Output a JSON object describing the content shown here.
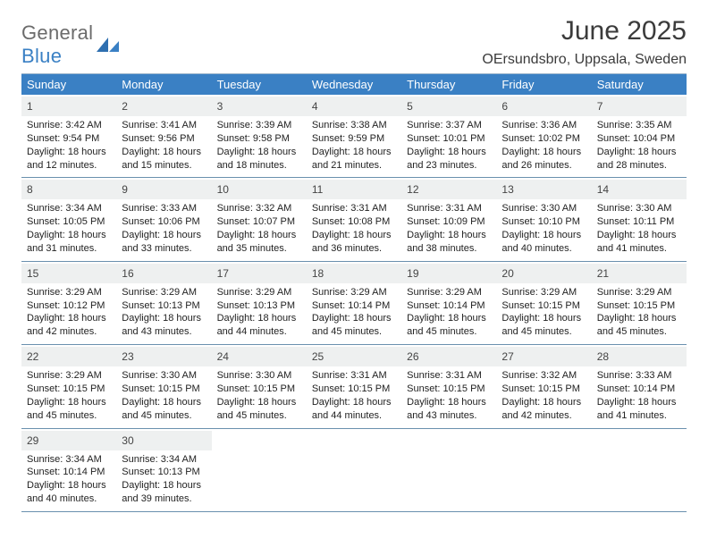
{
  "brand": {
    "word1": "General",
    "word2": "Blue"
  },
  "title": "June 2025",
  "location": "OErsundsbro, Uppsala, Sweden",
  "colors": {
    "accent": "#3a80c4",
    "gray_text": "#6b6b6b",
    "band": "#eef0f0",
    "week_border": "#6a90ae",
    "top_border": "#9fb7cc"
  },
  "days_of_week": [
    "Sunday",
    "Monday",
    "Tuesday",
    "Wednesday",
    "Thursday",
    "Friday",
    "Saturday"
  ],
  "weeks": [
    [
      {
        "n": "1",
        "sr": "Sunrise: 3:42 AM",
        "ss": "Sunset: 9:54 PM",
        "d1": "Daylight: 18 hours",
        "d2": "and 12 minutes."
      },
      {
        "n": "2",
        "sr": "Sunrise: 3:41 AM",
        "ss": "Sunset: 9:56 PM",
        "d1": "Daylight: 18 hours",
        "d2": "and 15 minutes."
      },
      {
        "n": "3",
        "sr": "Sunrise: 3:39 AM",
        "ss": "Sunset: 9:58 PM",
        "d1": "Daylight: 18 hours",
        "d2": "and 18 minutes."
      },
      {
        "n": "4",
        "sr": "Sunrise: 3:38 AM",
        "ss": "Sunset: 9:59 PM",
        "d1": "Daylight: 18 hours",
        "d2": "and 21 minutes."
      },
      {
        "n": "5",
        "sr": "Sunrise: 3:37 AM",
        "ss": "Sunset: 10:01 PM",
        "d1": "Daylight: 18 hours",
        "d2": "and 23 minutes."
      },
      {
        "n": "6",
        "sr": "Sunrise: 3:36 AM",
        "ss": "Sunset: 10:02 PM",
        "d1": "Daylight: 18 hours",
        "d2": "and 26 minutes."
      },
      {
        "n": "7",
        "sr": "Sunrise: 3:35 AM",
        "ss": "Sunset: 10:04 PM",
        "d1": "Daylight: 18 hours",
        "d2": "and 28 minutes."
      }
    ],
    [
      {
        "n": "8",
        "sr": "Sunrise: 3:34 AM",
        "ss": "Sunset: 10:05 PM",
        "d1": "Daylight: 18 hours",
        "d2": "and 31 minutes."
      },
      {
        "n": "9",
        "sr": "Sunrise: 3:33 AM",
        "ss": "Sunset: 10:06 PM",
        "d1": "Daylight: 18 hours",
        "d2": "and 33 minutes."
      },
      {
        "n": "10",
        "sr": "Sunrise: 3:32 AM",
        "ss": "Sunset: 10:07 PM",
        "d1": "Daylight: 18 hours",
        "d2": "and 35 minutes."
      },
      {
        "n": "11",
        "sr": "Sunrise: 3:31 AM",
        "ss": "Sunset: 10:08 PM",
        "d1": "Daylight: 18 hours",
        "d2": "and 36 minutes."
      },
      {
        "n": "12",
        "sr": "Sunrise: 3:31 AM",
        "ss": "Sunset: 10:09 PM",
        "d1": "Daylight: 18 hours",
        "d2": "and 38 minutes."
      },
      {
        "n": "13",
        "sr": "Sunrise: 3:30 AM",
        "ss": "Sunset: 10:10 PM",
        "d1": "Daylight: 18 hours",
        "d2": "and 40 minutes."
      },
      {
        "n": "14",
        "sr": "Sunrise: 3:30 AM",
        "ss": "Sunset: 10:11 PM",
        "d1": "Daylight: 18 hours",
        "d2": "and 41 minutes."
      }
    ],
    [
      {
        "n": "15",
        "sr": "Sunrise: 3:29 AM",
        "ss": "Sunset: 10:12 PM",
        "d1": "Daylight: 18 hours",
        "d2": "and 42 minutes."
      },
      {
        "n": "16",
        "sr": "Sunrise: 3:29 AM",
        "ss": "Sunset: 10:13 PM",
        "d1": "Daylight: 18 hours",
        "d2": "and 43 minutes."
      },
      {
        "n": "17",
        "sr": "Sunrise: 3:29 AM",
        "ss": "Sunset: 10:13 PM",
        "d1": "Daylight: 18 hours",
        "d2": "and 44 minutes."
      },
      {
        "n": "18",
        "sr": "Sunrise: 3:29 AM",
        "ss": "Sunset: 10:14 PM",
        "d1": "Daylight: 18 hours",
        "d2": "and 45 minutes."
      },
      {
        "n": "19",
        "sr": "Sunrise: 3:29 AM",
        "ss": "Sunset: 10:14 PM",
        "d1": "Daylight: 18 hours",
        "d2": "and 45 minutes."
      },
      {
        "n": "20",
        "sr": "Sunrise: 3:29 AM",
        "ss": "Sunset: 10:15 PM",
        "d1": "Daylight: 18 hours",
        "d2": "and 45 minutes."
      },
      {
        "n": "21",
        "sr": "Sunrise: 3:29 AM",
        "ss": "Sunset: 10:15 PM",
        "d1": "Daylight: 18 hours",
        "d2": "and 45 minutes."
      }
    ],
    [
      {
        "n": "22",
        "sr": "Sunrise: 3:29 AM",
        "ss": "Sunset: 10:15 PM",
        "d1": "Daylight: 18 hours",
        "d2": "and 45 minutes."
      },
      {
        "n": "23",
        "sr": "Sunrise: 3:30 AM",
        "ss": "Sunset: 10:15 PM",
        "d1": "Daylight: 18 hours",
        "d2": "and 45 minutes."
      },
      {
        "n": "24",
        "sr": "Sunrise: 3:30 AM",
        "ss": "Sunset: 10:15 PM",
        "d1": "Daylight: 18 hours",
        "d2": "and 45 minutes."
      },
      {
        "n": "25",
        "sr": "Sunrise: 3:31 AM",
        "ss": "Sunset: 10:15 PM",
        "d1": "Daylight: 18 hours",
        "d2": "and 44 minutes."
      },
      {
        "n": "26",
        "sr": "Sunrise: 3:31 AM",
        "ss": "Sunset: 10:15 PM",
        "d1": "Daylight: 18 hours",
        "d2": "and 43 minutes."
      },
      {
        "n": "27",
        "sr": "Sunrise: 3:32 AM",
        "ss": "Sunset: 10:15 PM",
        "d1": "Daylight: 18 hours",
        "d2": "and 42 minutes."
      },
      {
        "n": "28",
        "sr": "Sunrise: 3:33 AM",
        "ss": "Sunset: 10:14 PM",
        "d1": "Daylight: 18 hours",
        "d2": "and 41 minutes."
      }
    ],
    [
      {
        "n": "29",
        "sr": "Sunrise: 3:34 AM",
        "ss": "Sunset: 10:14 PM",
        "d1": "Daylight: 18 hours",
        "d2": "and 40 minutes."
      },
      {
        "n": "30",
        "sr": "Sunrise: 3:34 AM",
        "ss": "Sunset: 10:13 PM",
        "d1": "Daylight: 18 hours",
        "d2": "and 39 minutes."
      },
      {
        "n": "",
        "sr": "",
        "ss": "",
        "d1": "",
        "d2": ""
      },
      {
        "n": "",
        "sr": "",
        "ss": "",
        "d1": "",
        "d2": ""
      },
      {
        "n": "",
        "sr": "",
        "ss": "",
        "d1": "",
        "d2": ""
      },
      {
        "n": "",
        "sr": "",
        "ss": "",
        "d1": "",
        "d2": ""
      },
      {
        "n": "",
        "sr": "",
        "ss": "",
        "d1": "",
        "d2": ""
      }
    ]
  ]
}
